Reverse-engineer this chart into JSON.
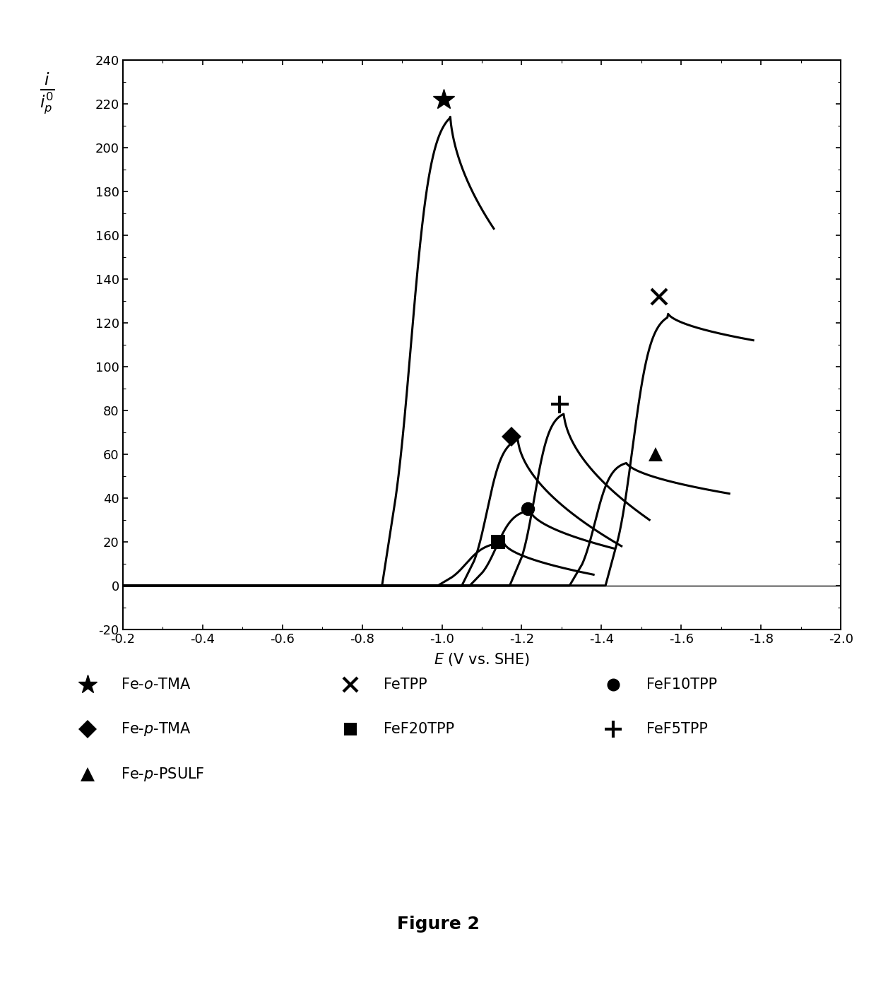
{
  "title": "Figure 2",
  "xlabel": "E (V vs. SHE)",
  "xlim_left": -0.2,
  "xlim_right": -2.0,
  "ylim": [
    -20,
    240
  ],
  "xticks": [
    -0.2,
    -0.4,
    -0.6,
    -0.8,
    -1.0,
    -1.2,
    -1.4,
    -1.6,
    -1.8,
    -2.0
  ],
  "yticks": [
    -20,
    0,
    20,
    40,
    60,
    80,
    100,
    120,
    140,
    160,
    180,
    200,
    220,
    240
  ],
  "curves": [
    {
      "name": "Fe_o_TMA",
      "baseline_start": -0.2,
      "onset": -0.88,
      "peak_x": -1.02,
      "peak_y": 218,
      "tail_x": -1.13,
      "tail_y": 163,
      "marker_x": -1.005,
      "marker_y": 222,
      "marker": "star"
    },
    {
      "name": "FeTPP",
      "baseline_start": -0.2,
      "onset": -1.44,
      "peak_x": -1.565,
      "peak_y": 125,
      "tail_x": -1.78,
      "tail_y": 112,
      "marker_x": -1.545,
      "marker_y": 132,
      "marker": "x"
    },
    {
      "name": "Fe_p_TMA",
      "baseline_start": -0.2,
      "onset": -1.08,
      "peak_x": -1.19,
      "peak_y": 68,
      "tail_x": -1.45,
      "tail_y": 18,
      "marker_x": -1.175,
      "marker_y": 68,
      "marker": "diamond"
    },
    {
      "name": "FeF20TPP",
      "baseline_start": -0.2,
      "onset": -1.02,
      "peak_x": -1.155,
      "peak_y": 20,
      "tail_x": -1.38,
      "tail_y": 5,
      "marker_x": -1.14,
      "marker_y": 20,
      "marker": "square"
    },
    {
      "name": "FeF10TPP",
      "baseline_start": -0.2,
      "onset": -1.1,
      "peak_x": -1.22,
      "peak_y": 35,
      "tail_x": -1.43,
      "tail_y": 17,
      "marker_x": -1.215,
      "marker_y": 35,
      "marker": "circle"
    },
    {
      "name": "FeF5TPP",
      "baseline_start": -0.2,
      "onset": -1.2,
      "peak_x": -1.305,
      "peak_y": 80,
      "tail_x": -1.52,
      "tail_y": 30,
      "marker_x": -1.295,
      "marker_y": 83,
      "marker": "plus"
    },
    {
      "name": "Fe_p_PSULF",
      "baseline_start": -0.2,
      "onset": -1.35,
      "peak_x": -1.46,
      "peak_y": 57,
      "tail_x": -1.72,
      "tail_y": 42,
      "marker_x": -1.535,
      "marker_y": 60,
      "marker": "triangle"
    }
  ],
  "legend": [
    {
      "row": 0,
      "col": 0,
      "marker": "star",
      "label": "Fe-$o$-TMA"
    },
    {
      "row": 0,
      "col": 1,
      "marker": "x",
      "label": "FeTPP"
    },
    {
      "row": 0,
      "col": 2,
      "marker": "circle",
      "label": "FeF10TPP"
    },
    {
      "row": 1,
      "col": 0,
      "marker": "diamond",
      "label": "Fe-$p$-TMA"
    },
    {
      "row": 1,
      "col": 1,
      "marker": "square",
      "label": "FeF20TPP"
    },
    {
      "row": 1,
      "col": 2,
      "marker": "plus",
      "label": "FeF5TPP"
    },
    {
      "row": 2,
      "col": 0,
      "marker": "triangle",
      "label": "Fe-$p$-PSULF"
    }
  ]
}
